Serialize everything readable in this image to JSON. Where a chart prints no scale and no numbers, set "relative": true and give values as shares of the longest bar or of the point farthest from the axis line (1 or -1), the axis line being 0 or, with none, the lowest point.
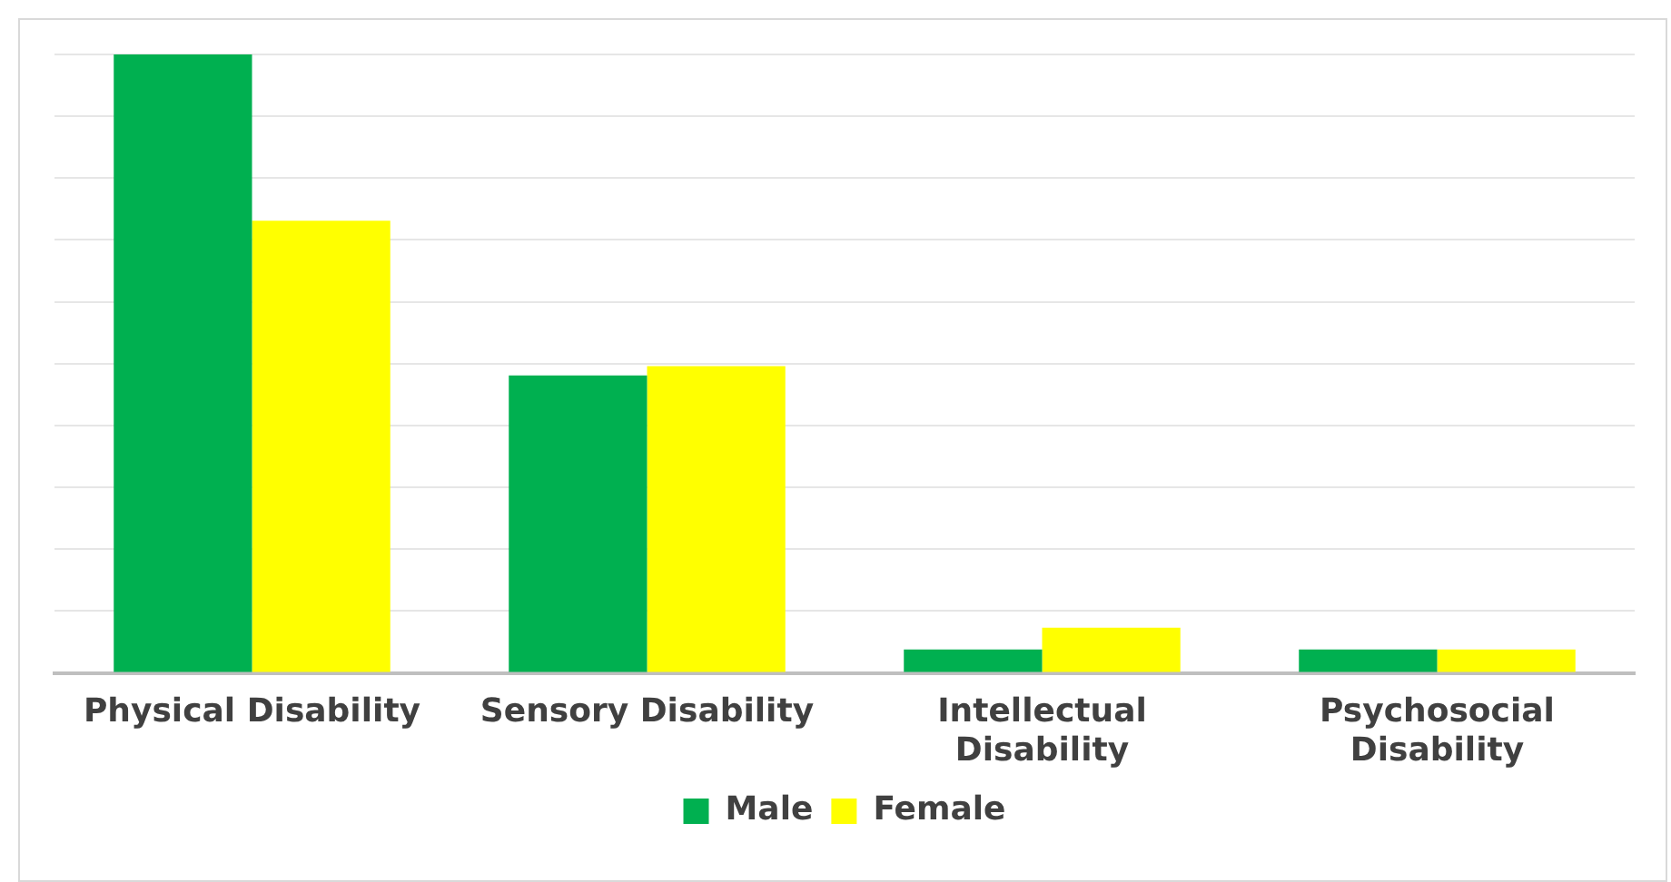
{
  "chart_data": {
    "type": "bar",
    "relative": true,
    "categories": [
      "Physical Disability",
      "Sensory Disability",
      "Intellectual Disability",
      "Psychosocial Disability"
    ],
    "series": [
      {
        "name": "Male",
        "color": "#00b050",
        "values": [
          1,
          0.481,
          0.038,
          0.038
        ]
      },
      {
        "name": "Female",
        "color": "#ffff00",
        "values": [
          0.731,
          0.496,
          0.073,
          0.038
        ]
      }
    ],
    "grid": "y",
    "legend": "bottom"
  }
}
